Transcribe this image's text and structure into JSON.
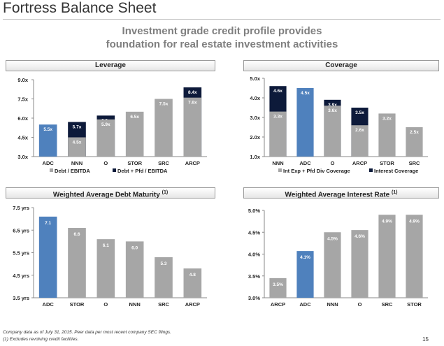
{
  "title": "Fortress Balance Sheet",
  "subtitle_line1": "Investment grade credit profile provides",
  "subtitle_line2": "foundation for real estate investment activities",
  "footnote1": "Company data as of July 31, 2015. Peer data per most recent company SEC filings.",
  "footnote2": "(1)   Excludes revolving credit facilities.",
  "page_number": "15",
  "colors": {
    "adc_blue": "#4f81bd",
    "peer_gray": "#a6a6a6",
    "navy": "#0d1a3a",
    "label_white": "#ffffff"
  },
  "chart_data": [
    {
      "id": "leverage",
      "type": "bar",
      "title": "Leverage",
      "categories": [
        "ADC",
        "NNN",
        "O",
        "STOR",
        "SRC",
        "ARCP"
      ],
      "highlight": "ADC",
      "ylim": [
        3.0,
        9.0
      ],
      "yticks": [
        "3.0x",
        "4.5x",
        "6.0x",
        "7.5x",
        "9.0x"
      ],
      "ytick_values": [
        3.0,
        4.5,
        6.0,
        7.5,
        9.0
      ],
      "series": [
        {
          "name": "Debt / EBITDA",
          "values": [
            5.5,
            4.5,
            5.9,
            6.5,
            7.5,
            7.6
          ],
          "labels": [
            "5.5x",
            "4.5x",
            "5.9x",
            "6.5x",
            "7.5x",
            "7.6x"
          ]
        },
        {
          "name": "Debt + Pfd / EBITDA",
          "values": [
            null,
            5.7,
            6.2,
            null,
            null,
            8.4
          ],
          "labels": [
            "",
            "5.7x",
            "6.2x",
            "",
            "",
            "8.4x"
          ]
        }
      ]
    },
    {
      "id": "coverage",
      "type": "bar",
      "title": "Coverage",
      "categories": [
        "NNN",
        "ADC",
        "O",
        "ARCP",
        "STOR",
        "SRC"
      ],
      "highlight": "ADC",
      "ylim": [
        1.0,
        5.0
      ],
      "yticks": [
        "1.0x",
        "2.0x",
        "3.0x",
        "4.0x",
        "5.0x"
      ],
      "ytick_values": [
        1.0,
        2.0,
        3.0,
        4.0,
        5.0
      ],
      "series": [
        {
          "name": "Int Exp + Pfd Div Coverage",
          "values": [
            3.3,
            null,
            3.6,
            2.6,
            3.2,
            2.5
          ],
          "labels": [
            "3.3x",
            "",
            "3.6x",
            "2.6x",
            "3.2x",
            "2.5x"
          ]
        },
        {
          "name": "Interest Coverage",
          "values": [
            4.6,
            4.5,
            3.9,
            3.5,
            null,
            null
          ],
          "labels": [
            "4.6x",
            "4.5x",
            "3.9x",
            "3.5x",
            "",
            ""
          ]
        }
      ]
    },
    {
      "id": "maturity",
      "type": "bar",
      "title": "Weighted Average Debt Maturity",
      "title_sup": "(1)",
      "categories": [
        "ADC",
        "STOR",
        "O",
        "NNN",
        "SRC",
        "ARCP"
      ],
      "highlight": "ADC",
      "ylim": [
        3.5,
        7.5
      ],
      "yticks": [
        "3.5 yrs",
        "4.5 yrs",
        "5.5 yrs",
        "6.5 yrs",
        "7.5 yrs"
      ],
      "ytick_values": [
        3.5,
        4.5,
        5.5,
        6.5,
        7.5
      ],
      "series": [
        {
          "name": "",
          "values": [
            7.1,
            6.6,
            6.1,
            6.0,
            5.3,
            4.8
          ],
          "labels": [
            "7.1",
            "6.6",
            "6.1",
            "6.0",
            "5.3",
            "4.8"
          ]
        }
      ]
    },
    {
      "id": "interest-rate",
      "type": "bar",
      "title": "Weighted Average Interest Rate",
      "title_sup": "(1)",
      "categories": [
        "ARCP",
        "ADC",
        "NNN",
        "O",
        "SRC",
        "STOR"
      ],
      "highlight": "ADC",
      "ylim": [
        3.0,
        5.0
      ],
      "yticks": [
        "3.0%",
        "3.5%",
        "4.0%",
        "4.5%",
        "5.0%"
      ],
      "ytick_values": [
        3.0,
        3.5,
        4.0,
        4.5,
        5.0
      ],
      "series": [
        {
          "name": "",
          "values": [
            3.45,
            4.07,
            4.5,
            4.55,
            4.9,
            4.9
          ],
          "labels": [
            "3.5%",
            "4.1%",
            "4.5%",
            "4.6%",
            "4.9%",
            "4.9%"
          ]
        }
      ]
    }
  ]
}
